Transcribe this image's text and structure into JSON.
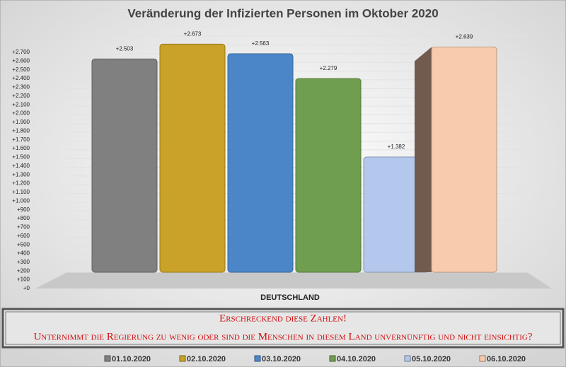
{
  "chart_data": {
    "type": "bar",
    "title": "Veränderung der Infizierten Personen im Oktober 2020",
    "categories": [
      "DEUTSCHLAND"
    ],
    "series": [
      {
        "name": "01.10.2020",
        "color": "#808080",
        "values": [
          2503
        ],
        "value_labels": [
          "+2.503"
        ]
      },
      {
        "name": "02.10.2020",
        "color": "#c9a227",
        "values": [
          2673
        ],
        "value_labels": [
          "+2.673"
        ]
      },
      {
        "name": "03.10.2020",
        "color": "#4a86c8",
        "values": [
          2563
        ],
        "value_labels": [
          "+2.563"
        ]
      },
      {
        "name": "04.10.2020",
        "color": "#6f9e4f",
        "values": [
          2279
        ],
        "value_labels": [
          "+2.279"
        ]
      },
      {
        "name": "05.10.2020",
        "color": "#b4c7ec",
        "values": [
          1382
        ],
        "value_labels": [
          "+1.382"
        ]
      },
      {
        "name": "06.10.2020",
        "color": "#f8cbad",
        "values": [
          2639
        ],
        "value_labels": [
          "+2.639"
        ]
      }
    ],
    "ylim": [
      0,
      2700
    ],
    "yticks": [
      {
        "value": 0,
        "label": "+0"
      },
      {
        "value": 100,
        "label": "+100"
      },
      {
        "value": 200,
        "label": "+200"
      },
      {
        "value": 300,
        "label": "+300"
      },
      {
        "value": 400,
        "label": "+400"
      },
      {
        "value": 500,
        "label": "+500"
      },
      {
        "value": 600,
        "label": "+600"
      },
      {
        "value": 700,
        "label": "+700"
      },
      {
        "value": 800,
        "label": "+800"
      },
      {
        "value": 900,
        "label": "+900"
      },
      {
        "value": 1000,
        "label": "+1.000"
      },
      {
        "value": 1100,
        "label": "+1.100"
      },
      {
        "value": 1200,
        "label": "+1.200"
      },
      {
        "value": 1300,
        "label": "+1.300"
      },
      {
        "value": 1400,
        "label": "+1.400"
      },
      {
        "value": 1500,
        "label": "+1.500"
      },
      {
        "value": 1600,
        "label": "+1.600"
      },
      {
        "value": 1700,
        "label": "+1.700"
      },
      {
        "value": 1800,
        "label": "+1.800"
      },
      {
        "value": 1900,
        "label": "+1.900"
      },
      {
        "value": 2000,
        "label": "+2.000"
      },
      {
        "value": 2100,
        "label": "+2.100"
      },
      {
        "value": 2200,
        "label": "+2.200"
      },
      {
        "value": 2300,
        "label": "+2.300"
      },
      {
        "value": 2400,
        "label": "+2.400"
      },
      {
        "value": 2500,
        "label": "+2.500"
      },
      {
        "value": 2600,
        "label": "+2.600"
      },
      {
        "value": 2700,
        "label": "+2.700"
      }
    ],
    "grid": true,
    "annotations": [
      "Erschreckend diese Zahlen!",
      "Unternimmt die Regierung zu wenig oder sind die Menschen in diesem Land unvernünftig und nicht einsichtig?"
    ]
  }
}
